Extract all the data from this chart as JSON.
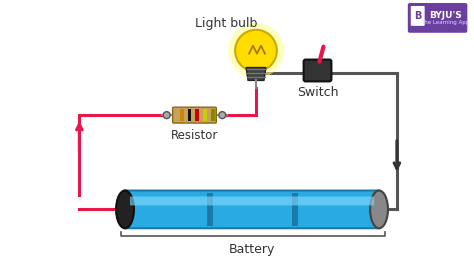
{
  "bg_color": "#ffffff",
  "circuit_wire_color": "#e8174a",
  "circuit_wire_color2": "#555555",
  "arrow_color": "#333333",
  "label_light_bulb": "Light bulb",
  "label_resistor": "Resistor",
  "label_switch": "Switch",
  "label_battery": "Battery",
  "byju_bg": "#6b3fa0",
  "byju_text": "BYJU'S",
  "byju_subtext": "The Learning App",
  "bulb_glow_color": "#ffff88",
  "bulb_glow_color2": "#ffdd00",
  "resistor_body_color": "#c8a060",
  "battery_body_color": "#29abe2",
  "battery_dark": "#1a7aa8",
  "switch_lever_color": "#e8174a",
  "stripe_colors": [
    "#cc8800",
    "#111111",
    "#cc0000",
    "#cccc00",
    "#888800"
  ]
}
